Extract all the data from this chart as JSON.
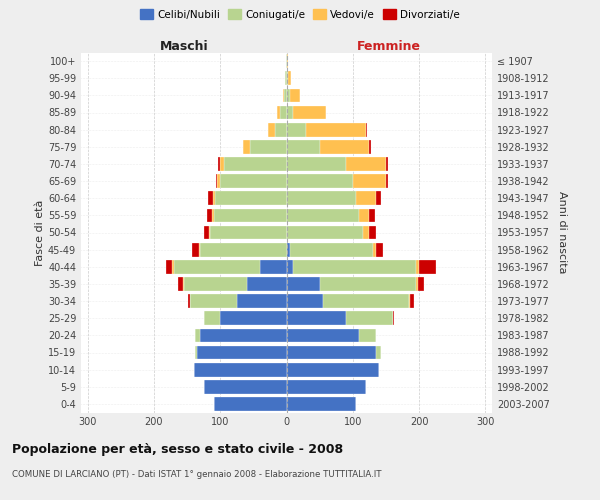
{
  "age_groups": [
    "0-4",
    "5-9",
    "10-14",
    "15-19",
    "20-24",
    "25-29",
    "30-34",
    "35-39",
    "40-44",
    "45-49",
    "50-54",
    "55-59",
    "60-64",
    "65-69",
    "70-74",
    "75-79",
    "80-84",
    "85-89",
    "90-94",
    "95-99",
    "100+"
  ],
  "birth_years": [
    "2003-2007",
    "1998-2002",
    "1993-1997",
    "1988-1992",
    "1983-1987",
    "1978-1982",
    "1973-1977",
    "1968-1972",
    "1963-1967",
    "1958-1962",
    "1953-1957",
    "1948-1952",
    "1943-1947",
    "1938-1942",
    "1933-1937",
    "1928-1932",
    "1923-1927",
    "1918-1922",
    "1913-1917",
    "1908-1912",
    "≤ 1907"
  ],
  "male": {
    "celibi": [
      110,
      125,
      140,
      135,
      130,
      100,
      75,
      60,
      40,
      0,
      0,
      0,
      0,
      0,
      0,
      0,
      0,
      0,
      0,
      0,
      0
    ],
    "coniugati": [
      0,
      0,
      0,
      3,
      8,
      25,
      70,
      95,
      130,
      130,
      115,
      110,
      108,
      100,
      95,
      55,
      18,
      10,
      4,
      2,
      1
    ],
    "vedovi": [
      0,
      0,
      0,
      0,
      0,
      0,
      0,
      1,
      2,
      2,
      2,
      2,
      3,
      5,
      5,
      10,
      10,
      5,
      1,
      0,
      0
    ],
    "divorziati": [
      0,
      0,
      0,
      0,
      0,
      0,
      3,
      8,
      10,
      10,
      8,
      8,
      8,
      2,
      3,
      0,
      0,
      0,
      0,
      0,
      0
    ]
  },
  "female": {
    "nubili": [
      105,
      120,
      140,
      135,
      110,
      90,
      55,
      50,
      10,
      5,
      0,
      0,
      0,
      0,
      0,
      0,
      0,
      0,
      0,
      0,
      0
    ],
    "coniugate": [
      0,
      0,
      0,
      8,
      25,
      70,
      130,
      145,
      185,
      125,
      115,
      110,
      105,
      100,
      90,
      50,
      30,
      10,
      5,
      2,
      0
    ],
    "vedove": [
      0,
      0,
      0,
      0,
      0,
      0,
      2,
      3,
      5,
      5,
      10,
      15,
      30,
      50,
      60,
      75,
      90,
      50,
      15,
      5,
      2
    ],
    "divorziate": [
      0,
      0,
      0,
      0,
      0,
      2,
      5,
      10,
      25,
      10,
      10,
      8,
      8,
      3,
      3,
      3,
      2,
      0,
      0,
      0,
      0
    ]
  },
  "colors": {
    "celibi": "#4472c4",
    "coniugati": "#b8d490",
    "vedovi": "#ffc050",
    "divorziati": "#cc0000"
  },
  "title": "Popolazione per età, sesso e stato civile - 2008",
  "subtitle": "COMUNE DI LARCIANO (PT) - Dati ISTAT 1° gennaio 2008 - Elaborazione TUTTITALIA.IT",
  "xlabel_left": "Maschi",
  "xlabel_right": "Femmine",
  "ylabel_left": "Fasce di età",
  "ylabel_right": "Anni di nascita",
  "xlim": 310,
  "bg_color": "#eeeeee",
  "bar_bg_color": "#ffffff",
  "legend_labels": [
    "Celibi/Nubili",
    "Coniugati/e",
    "Vedovi/e",
    "Divorziati/e"
  ]
}
